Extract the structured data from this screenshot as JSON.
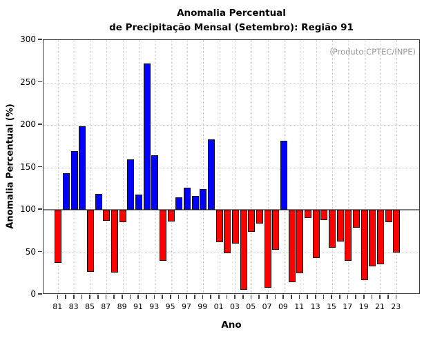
{
  "title": {
    "line1": "Anomalia Percentual",
    "line2": "de Precipitação Mensal (Setembro): Região 91"
  },
  "annotation": "(Produto:CPTEC/INPE)",
  "axes": {
    "y_label": "Anomalia Percentual (%)",
    "x_label": "Ano",
    "y_ticks": [
      0,
      50,
      100,
      150,
      200,
      250,
      300
    ],
    "x_tick_labels": [
      "81",
      "83",
      "85",
      "87",
      "89",
      "91",
      "93",
      "95",
      "97",
      "99",
      "01",
      "03",
      "05",
      "07",
      "09",
      "11",
      "13",
      "15",
      "17",
      "19",
      "21",
      "23"
    ]
  },
  "colors": {
    "above_baseline": "#0000ff",
    "below_baseline": "#ff0000",
    "baseline_line": "#7f7f7f",
    "annotation_text": "#9a9a9a"
  },
  "chart_data": {
    "type": "bar",
    "title": "Anomalia Percentual de Precipitação Mensal (Setembro): Região 91",
    "xlabel": "Ano",
    "ylabel": "Anomalia Percentual (%)",
    "ylim": [
      0,
      300
    ],
    "baseline": 100,
    "grid": "dotted, horizontal every 50, vertical every 2 years",
    "legend_position": "none",
    "categories": [
      "81",
      "82",
      "83",
      "84",
      "85",
      "86",
      "87",
      "88",
      "89",
      "90",
      "91",
      "92",
      "93",
      "94",
      "95",
      "96",
      "97",
      "98",
      "99",
      "00",
      "01",
      "02",
      "03",
      "04",
      "05",
      "06",
      "07",
      "08",
      "09",
      "10",
      "11",
      "12",
      "13",
      "14",
      "15",
      "16",
      "17",
      "18",
      "19",
      "20",
      "21",
      "22",
      "23"
    ],
    "values": [
      37,
      143,
      169,
      198,
      27,
      119,
      87,
      26,
      85,
      159,
      118,
      272,
      164,
      40,
      86,
      115,
      126,
      116,
      124,
      183,
      62,
      49,
      60,
      6,
      74,
      84,
      8,
      53,
      181,
      15,
      25,
      90,
      43,
      88,
      55,
      63,
      40,
      79,
      17,
      33,
      36,
      85,
      50
    ],
    "color_rule": "blue if value > 100 else red"
  }
}
